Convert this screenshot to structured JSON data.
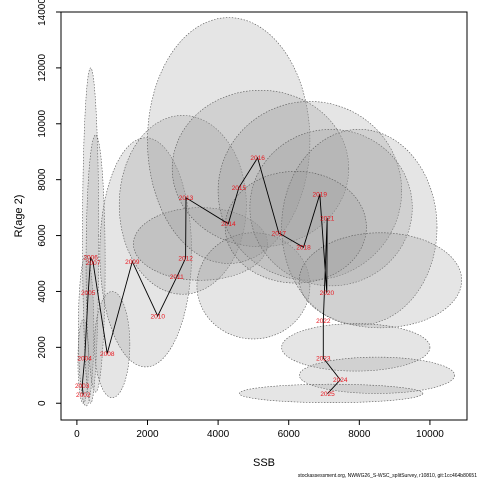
{
  "chart_data": {
    "type": "scatter",
    "title": "",
    "xlabel": "SSB",
    "ylabel": "R(age 2)",
    "xlim": [
      -450,
      11050
    ],
    "ylim": [
      -600,
      14000
    ],
    "xticks": [
      0,
      2000,
      4000,
      6000,
      8000,
      10000
    ],
    "yticks": [
      0,
      2000,
      4000,
      6000,
      8000,
      10000,
      12000,
      14000
    ],
    "point_color": "#e8141c",
    "line_color": "#000000",
    "ellipse_fill": "#999999",
    "ellipse_opacity": 0.25,
    "ellipse_stroke": "#555555",
    "points": [
      {
        "year": "2002",
        "x": 180,
        "y": 310
      },
      {
        "year": "2003",
        "x": 150,
        "y": 620
      },
      {
        "year": "2004",
        "x": 220,
        "y": 1620
      },
      {
        "year": "2005",
        "x": 320,
        "y": 3960
      },
      {
        "year": "2006",
        "x": 390,
        "y": 5230
      },
      {
        "year": "2007",
        "x": 460,
        "y": 5030
      },
      {
        "year": "2008",
        "x": 860,
        "y": 1780
      },
      {
        "year": "2009",
        "x": 1570,
        "y": 5070
      },
      {
        "year": "2010",
        "x": 2290,
        "y": 3120
      },
      {
        "year": "2011",
        "x": 2830,
        "y": 4520
      },
      {
        "year": "2012",
        "x": 3080,
        "y": 5190
      },
      {
        "year": "2013",
        "x": 3090,
        "y": 7350
      },
      {
        "year": "2014",
        "x": 4290,
        "y": 6420
      },
      {
        "year": "2015",
        "x": 4590,
        "y": 7720
      },
      {
        "year": "2016",
        "x": 5120,
        "y": 8780
      },
      {
        "year": "2017",
        "x": 5720,
        "y": 6090
      },
      {
        "year": "2018",
        "x": 6420,
        "y": 5580
      },
      {
        "year": "2019",
        "x": 6880,
        "y": 7480
      },
      {
        "year": "2020",
        "x": 7080,
        "y": 3960
      },
      {
        "year": "2021",
        "x": 7090,
        "y": 6630
      },
      {
        "year": "2022",
        "x": 6980,
        "y": 2950
      },
      {
        "year": "2023",
        "x": 6980,
        "y": 1620
      },
      {
        "year": "2024",
        "x": 7460,
        "y": 840
      },
      {
        "year": "2025",
        "x": 7100,
        "y": 340
      }
    ],
    "ellipses": [
      {
        "cx": 180,
        "cy": 1500,
        "rx": 150,
        "ry": 1500,
        "rot": 0
      },
      {
        "cx": 260,
        "cy": 2600,
        "rx": 220,
        "ry": 2700,
        "rot": 0
      },
      {
        "cx": 390,
        "cy": 6000,
        "rx": 230,
        "ry": 6000,
        "rot": 0
      },
      {
        "cx": 530,
        "cy": 5000,
        "rx": 270,
        "ry": 4600,
        "rot": 0
      },
      {
        "cx": 1000,
        "cy": 2100,
        "rx": 500,
        "ry": 1900,
        "rot": 0
      },
      {
        "cx": 1950,
        "cy": 5400,
        "rx": 1300,
        "ry": 4100,
        "rot": 0
      },
      {
        "cx": 3000,
        "cy": 7100,
        "rx": 1800,
        "ry": 3200,
        "rot": 0
      },
      {
        "cx": 3500,
        "cy": 5700,
        "rx": 1900,
        "ry": 1300,
        "rot": 0
      },
      {
        "cx": 4300,
        "cy": 9400,
        "rx": 2300,
        "ry": 4400,
        "rot": 0
      },
      {
        "cx": 5200,
        "cy": 8400,
        "rx": 2500,
        "ry": 2800,
        "rot": 0
      },
      {
        "cx": 5000,
        "cy": 4200,
        "rx": 1600,
        "ry": 1900,
        "rot": 0
      },
      {
        "cx": 6600,
        "cy": 7600,
        "rx": 2600,
        "ry": 3200,
        "rot": 0
      },
      {
        "cx": 7200,
        "cy": 7000,
        "rx": 2300,
        "ry": 2800,
        "rot": 0
      },
      {
        "cx": 8000,
        "cy": 6300,
        "rx": 2200,
        "ry": 3500,
        "rot": 0
      },
      {
        "cx": 6200,
        "cy": 6300,
        "rx": 2000,
        "ry": 2000,
        "rot": 0
      },
      {
        "cx": 8600,
        "cy": 4400,
        "rx": 2300,
        "ry": 1700,
        "rot": 0
      },
      {
        "cx": 7900,
        "cy": 2000,
        "rx": 2100,
        "ry": 850,
        "rot": 0
      },
      {
        "cx": 8500,
        "cy": 1000,
        "rx": 2200,
        "ry": 650,
        "rot": 0
      },
      {
        "cx": 7200,
        "cy": 350,
        "rx": 2600,
        "ry": 330,
        "rot": 0
      }
    ],
    "grid": false,
    "legend": "none"
  },
  "footnote": "stockassessment.org, NWWG26_S-WSC_splitSurvey, r10810, git:1cc464b80651"
}
